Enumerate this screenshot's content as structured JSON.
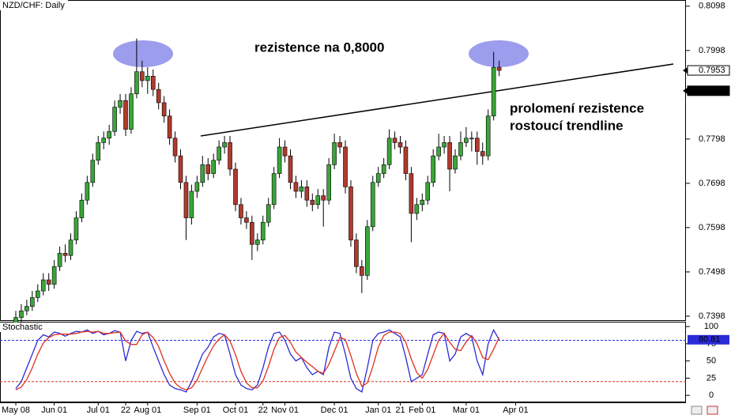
{
  "chart_data": [
    {
      "type": "candlestick",
      "title": "NZD/CHF: Daily",
      "annotations": [
        "rezistence na 0,8000",
        "prolomení rezistence",
        "rostoucí trendline"
      ],
      "categories": [
        "May 08",
        null,
        null,
        null,
        null,
        null,
        null,
        "Jun 01",
        null,
        null,
        null,
        null,
        null,
        null,
        null,
        "Jul 01",
        null,
        null,
        null,
        null,
        "22",
        null,
        null,
        null,
        "Aug 01",
        null,
        null,
        null,
        null,
        null,
        null,
        null,
        null,
        "Sep 01",
        null,
        null,
        null,
        null,
        null,
        null,
        "Oct 01",
        null,
        null,
        null,
        null,
        "22",
        null,
        null,
        null,
        "Nov 01",
        null,
        null,
        null,
        null,
        null,
        null,
        null,
        null,
        "Dec 01",
        null,
        null,
        null,
        null,
        null,
        null,
        null,
        "Jan 01",
        null,
        null,
        null,
        "21",
        null,
        null,
        null,
        "Feb 01",
        null,
        null,
        null,
        null,
        null,
        null,
        null,
        "Mar 01",
        null,
        null,
        null,
        null,
        null,
        null,
        null,
        null,
        "Apr 01"
      ],
      "open": [
        0.738,
        0.7395,
        0.741,
        0.742,
        0.744,
        0.7455,
        0.748,
        0.747,
        0.751,
        0.754,
        0.7535,
        0.757,
        0.762,
        0.766,
        0.77,
        0.775,
        0.779,
        0.78,
        0.7815,
        0.787,
        0.7885,
        0.782,
        0.79,
        0.795,
        0.793,
        0.794,
        0.791,
        0.788,
        0.785,
        0.78,
        0.776,
        0.77,
        0.762,
        0.768,
        0.77,
        0.774,
        0.772,
        0.775,
        0.778,
        0.779,
        0.773,
        0.765,
        0.762,
        0.761,
        0.756,
        0.757,
        0.761,
        0.765,
        0.772,
        0.778,
        0.776,
        0.77,
        0.768,
        0.769,
        0.766,
        0.765,
        0.767,
        0.766,
        0.774,
        0.779,
        0.778,
        0.769,
        0.757,
        0.751,
        0.749,
        0.76,
        0.77,
        0.772,
        0.774,
        0.78,
        0.779,
        0.778,
        0.772,
        0.763,
        0.765,
        0.766,
        0.77,
        0.776,
        0.778,
        0.779,
        0.773,
        0.776,
        0.779,
        0.78,
        0.78,
        0.777,
        0.776,
        0.785,
        0.796,
        null,
        null,
        null
      ],
      "high": [
        0.741,
        0.7425,
        0.7435,
        0.7455,
        0.747,
        0.7495,
        0.7495,
        0.7525,
        0.7555,
        0.756,
        0.7585,
        0.7635,
        0.7675,
        0.7715,
        0.7765,
        0.7805,
        0.7815,
        0.783,
        0.7885,
        0.79,
        0.79,
        0.7915,
        0.8025,
        0.7975,
        0.796,
        0.7955,
        0.7925,
        0.7895,
        0.7865,
        0.7815,
        0.7775,
        0.7715,
        0.7695,
        0.7715,
        0.776,
        0.7755,
        0.7765,
        0.7795,
        0.7805,
        0.7805,
        0.7745,
        0.7665,
        0.7635,
        0.7625,
        0.7585,
        0.7625,
        0.7665,
        0.7735,
        0.78,
        0.7795,
        0.7775,
        0.7715,
        0.7705,
        0.7705,
        0.7675,
        0.7685,
        0.7685,
        0.7755,
        0.781,
        0.7805,
        0.7795,
        0.7705,
        0.7585,
        0.7525,
        0.7615,
        0.7715,
        0.7735,
        0.7755,
        0.782,
        0.7815,
        0.7805,
        0.7795,
        0.7735,
        0.7665,
        0.7675,
        0.7715,
        0.7775,
        0.781,
        0.7805,
        0.7805,
        0.7775,
        0.7815,
        0.7825,
        0.7815,
        0.7815,
        0.779,
        0.7865,
        0.7995,
        0.7975,
        null,
        null,
        null
      ],
      "low": [
        0.737,
        0.7385,
        0.74,
        0.741,
        0.743,
        0.7445,
        0.7455,
        0.746,
        0.75,
        0.752,
        0.7525,
        0.756,
        0.761,
        0.765,
        0.769,
        0.774,
        0.7775,
        0.7785,
        0.7805,
        0.7855,
        0.7805,
        0.781,
        0.789,
        0.7915,
        0.79,
        0.7895,
        0.7865,
        0.7835,
        0.7785,
        0.7745,
        0.7685,
        0.757,
        0.7605,
        0.7665,
        0.769,
        0.7705,
        0.771,
        0.774,
        0.7765,
        0.7715,
        0.7635,
        0.7605,
        0.7595,
        0.7525,
        0.7545,
        0.756,
        0.76,
        0.764,
        0.771,
        0.7745,
        0.7685,
        0.7665,
        0.7665,
        0.7645,
        0.7635,
        0.764,
        0.76,
        0.765,
        0.773,
        0.7765,
        0.7675,
        0.7555,
        0.7495,
        0.745,
        0.748,
        0.759,
        0.769,
        0.771,
        0.773,
        0.7775,
        0.7765,
        0.7705,
        0.7565,
        0.7615,
        0.7635,
        0.765,
        0.769,
        0.775,
        0.7765,
        0.768,
        0.772,
        0.775,
        0.778,
        0.777,
        0.774,
        0.774,
        0.775,
        0.784,
        0.794,
        null,
        null,
        null
      ],
      "close": [
        0.7395,
        0.741,
        0.742,
        0.744,
        0.7455,
        0.748,
        0.747,
        0.751,
        0.754,
        0.7535,
        0.757,
        0.762,
        0.766,
        0.77,
        0.775,
        0.779,
        0.78,
        0.7815,
        0.787,
        0.7885,
        0.782,
        0.79,
        0.795,
        0.793,
        0.794,
        0.791,
        0.788,
        0.785,
        0.78,
        0.776,
        0.77,
        0.762,
        0.768,
        0.77,
        0.774,
        0.772,
        0.775,
        0.778,
        0.779,
        0.773,
        0.765,
        0.762,
        0.761,
        0.756,
        0.757,
        0.761,
        0.765,
        0.772,
        0.778,
        0.776,
        0.77,
        0.768,
        0.769,
        0.766,
        0.765,
        0.767,
        0.766,
        0.774,
        0.779,
        0.778,
        0.769,
        0.757,
        0.751,
        0.749,
        0.76,
        0.77,
        0.772,
        0.774,
        0.78,
        0.779,
        0.778,
        0.772,
        0.763,
        0.765,
        0.766,
        0.77,
        0.776,
        0.778,
        0.779,
        0.773,
        0.776,
        0.779,
        0.78,
        0.78,
        0.777,
        0.776,
        0.785,
        0.796,
        0.7953,
        null,
        null,
        null
      ],
      "up_color": "#3aa53a",
      "down_color": "#b03a2e",
      "ylim": [
        0.7389,
        0.8112
      ],
      "yticks": [
        0.8098,
        0.7998,
        0.7798,
        0.7698,
        0.7598,
        0.7498,
        0.7398
      ],
      "price_markers": [
        0.7953,
        0.7907
      ]
    },
    {
      "type": "line",
      "title": "Stochastic",
      "series": [
        {
          "color": "#2b2bd6",
          "values": [
            10,
            20,
            40,
            60,
            80,
            88,
            85,
            92,
            90,
            86,
            90,
            93,
            92,
            95,
            90,
            93,
            88,
            90,
            94,
            92,
            50,
            80,
            93,
            90,
            92,
            70,
            50,
            30,
            15,
            10,
            8,
            5,
            20,
            40,
            60,
            70,
            85,
            90,
            88,
            60,
            30,
            15,
            10,
            8,
            15,
            40,
            70,
            90,
            92,
            80,
            60,
            50,
            55,
            40,
            30,
            35,
            30,
            70,
            92,
            90,
            60,
            25,
            10,
            5,
            40,
            80,
            90,
            92,
            95,
            90,
            85,
            55,
            20,
            25,
            30,
            60,
            88,
            92,
            90,
            50,
            60,
            85,
            90,
            85,
            50,
            30,
            75,
            95,
            80.81,
            null,
            null,
            null
          ]
        },
        {
          "color": "#e0301e",
          "values": [
            8,
            12,
            23,
            40,
            60,
            76,
            84,
            88,
            89,
            89,
            89,
            90,
            92,
            93,
            92,
            93,
            90,
            90,
            91,
            92,
            79,
            74,
            74,
            88,
            92,
            84,
            71,
            50,
            32,
            18,
            11,
            8,
            11,
            22,
            40,
            57,
            72,
            82,
            88,
            79,
            59,
            35,
            18,
            11,
            11,
            21,
            42,
            67,
            84,
            87,
            77,
            63,
            55,
            48,
            42,
            35,
            32,
            45,
            64,
            84,
            81,
            58,
            32,
            13,
            18,
            42,
            70,
            87,
            92,
            92,
            90,
            77,
            53,
            33,
            25,
            38,
            59,
            80,
            90,
            77,
            67,
            65,
            78,
            87,
            75,
            55,
            52,
            67,
            84,
            null,
            null,
            null
          ]
        }
      ],
      "levels": [
        {
          "value": 80,
          "color": "#2b2bd6"
        },
        {
          "value": 20,
          "color": "#e0301e"
        }
      ],
      "ylim": [
        -9,
        107
      ],
      "yticks": [
        100,
        75,
        50,
        25,
        0
      ]
    }
  ]
}
